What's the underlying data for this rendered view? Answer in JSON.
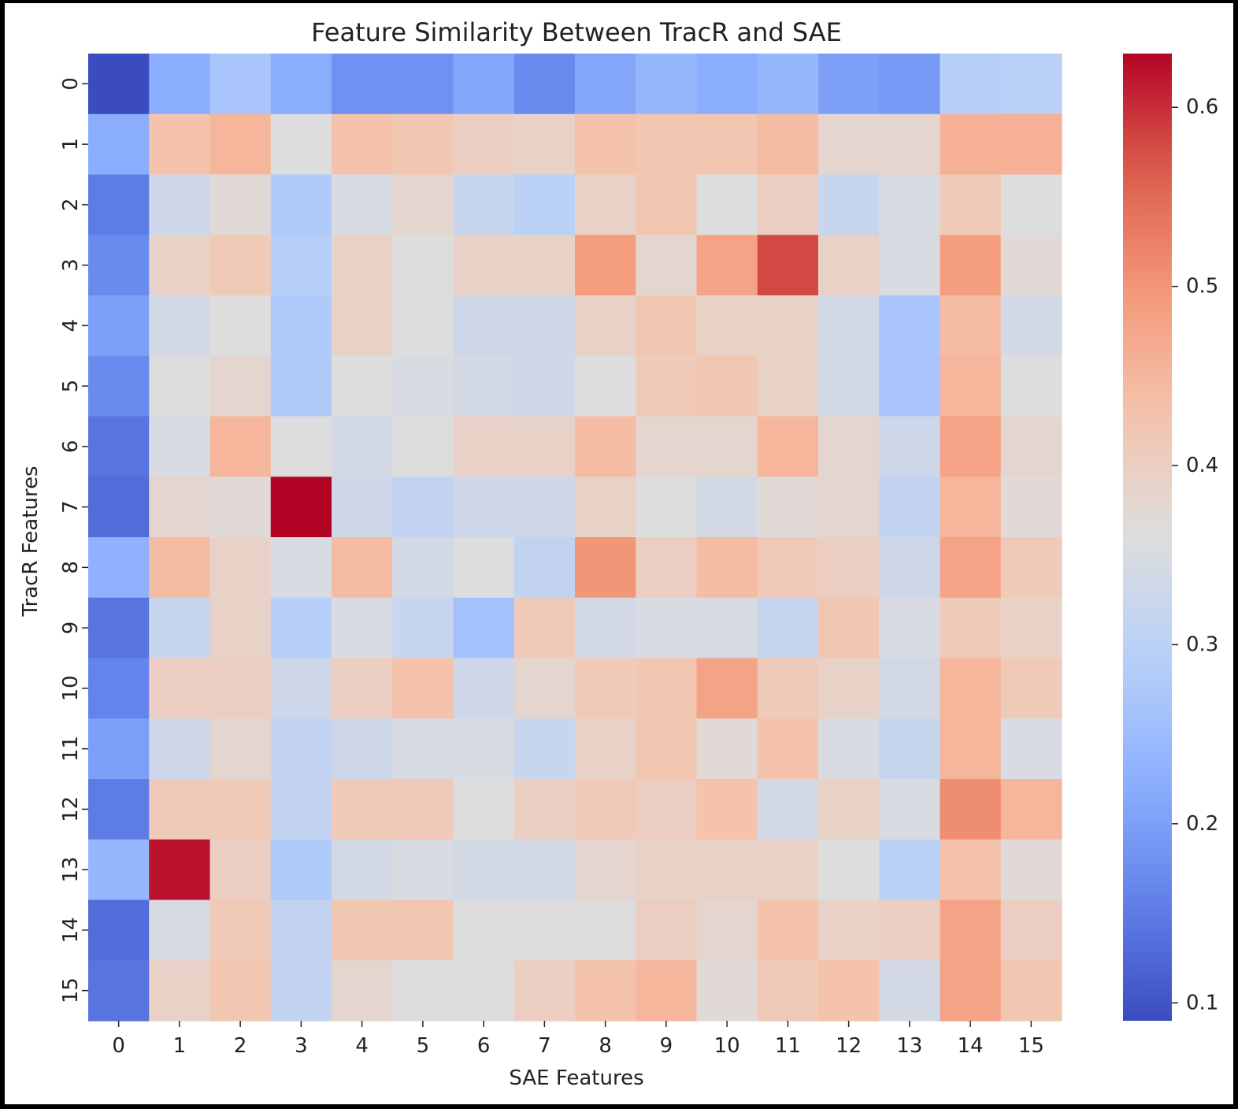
{
  "chart_data": {
    "type": "heatmap",
    "title": "Feature Similarity Between TracR and SAE",
    "xlabel": "SAE Features",
    "ylabel": "TracR Features",
    "x_categories": [
      "0",
      "1",
      "2",
      "3",
      "4",
      "5",
      "6",
      "7",
      "8",
      "9",
      "10",
      "11",
      "12",
      "13",
      "14",
      "15"
    ],
    "y_categories": [
      "0",
      "1",
      "2",
      "3",
      "4",
      "5",
      "6",
      "7",
      "8",
      "9",
      "10",
      "11",
      "12",
      "13",
      "14",
      "15"
    ],
    "colormap": "coolwarm",
    "vmin": 0.09,
    "vmax": 0.63,
    "colorbar_ticks": [
      "0.1",
      "0.2",
      "0.3",
      "0.4",
      "0.5",
      "0.6"
    ],
    "colorbar_tick_values": [
      0.1,
      0.2,
      0.3,
      0.4,
      0.5,
      0.6
    ],
    "values": [
      [
        0.09,
        0.22,
        0.27,
        0.22,
        0.18,
        0.18,
        0.21,
        0.17,
        0.21,
        0.24,
        0.22,
        0.24,
        0.2,
        0.19,
        0.29,
        0.3
      ],
      [
        0.22,
        0.43,
        0.45,
        0.36,
        0.43,
        0.42,
        0.4,
        0.39,
        0.43,
        0.42,
        0.42,
        0.44,
        0.38,
        0.38,
        0.46,
        0.46
      ],
      [
        0.15,
        0.33,
        0.37,
        0.28,
        0.35,
        0.38,
        0.32,
        0.3,
        0.39,
        0.42,
        0.36,
        0.4,
        0.32,
        0.35,
        0.41,
        0.36
      ],
      [
        0.17,
        0.39,
        0.41,
        0.29,
        0.39,
        0.36,
        0.39,
        0.39,
        0.49,
        0.38,
        0.48,
        0.58,
        0.39,
        0.35,
        0.49,
        0.37
      ],
      [
        0.2,
        0.34,
        0.36,
        0.28,
        0.39,
        0.36,
        0.33,
        0.33,
        0.39,
        0.42,
        0.39,
        0.39,
        0.34,
        0.27,
        0.44,
        0.34
      ],
      [
        0.17,
        0.36,
        0.38,
        0.28,
        0.36,
        0.35,
        0.34,
        0.33,
        0.36,
        0.41,
        0.42,
        0.39,
        0.34,
        0.27,
        0.45,
        0.36
      ],
      [
        0.14,
        0.35,
        0.45,
        0.36,
        0.34,
        0.36,
        0.39,
        0.39,
        0.44,
        0.38,
        0.38,
        0.45,
        0.38,
        0.33,
        0.48,
        0.38
      ],
      [
        0.13,
        0.38,
        0.37,
        0.63,
        0.33,
        0.31,
        0.33,
        0.33,
        0.39,
        0.36,
        0.34,
        0.37,
        0.38,
        0.31,
        0.45,
        0.37
      ],
      [
        0.23,
        0.44,
        0.39,
        0.35,
        0.44,
        0.34,
        0.36,
        0.31,
        0.5,
        0.4,
        0.44,
        0.41,
        0.4,
        0.33,
        0.48,
        0.41
      ],
      [
        0.14,
        0.32,
        0.39,
        0.29,
        0.35,
        0.32,
        0.26,
        0.41,
        0.34,
        0.35,
        0.35,
        0.32,
        0.42,
        0.35,
        0.41,
        0.39
      ],
      [
        0.16,
        0.4,
        0.4,
        0.33,
        0.4,
        0.43,
        0.33,
        0.38,
        0.41,
        0.42,
        0.48,
        0.41,
        0.39,
        0.34,
        0.45,
        0.41
      ],
      [
        0.2,
        0.33,
        0.38,
        0.31,
        0.33,
        0.35,
        0.35,
        0.32,
        0.39,
        0.42,
        0.37,
        0.43,
        0.35,
        0.32,
        0.45,
        0.35
      ],
      [
        0.15,
        0.41,
        0.41,
        0.31,
        0.41,
        0.41,
        0.36,
        0.4,
        0.41,
        0.4,
        0.43,
        0.34,
        0.39,
        0.35,
        0.51,
        0.45
      ],
      [
        0.24,
        0.62,
        0.4,
        0.28,
        0.34,
        0.35,
        0.34,
        0.34,
        0.38,
        0.39,
        0.39,
        0.39,
        0.36,
        0.3,
        0.43,
        0.37
      ],
      [
        0.13,
        0.35,
        0.41,
        0.31,
        0.42,
        0.42,
        0.36,
        0.36,
        0.36,
        0.4,
        0.38,
        0.43,
        0.39,
        0.4,
        0.48,
        0.4
      ],
      [
        0.14,
        0.39,
        0.42,
        0.31,
        0.38,
        0.36,
        0.36,
        0.4,
        0.43,
        0.45,
        0.37,
        0.41,
        0.43,
        0.34,
        0.48,
        0.42
      ]
    ]
  }
}
